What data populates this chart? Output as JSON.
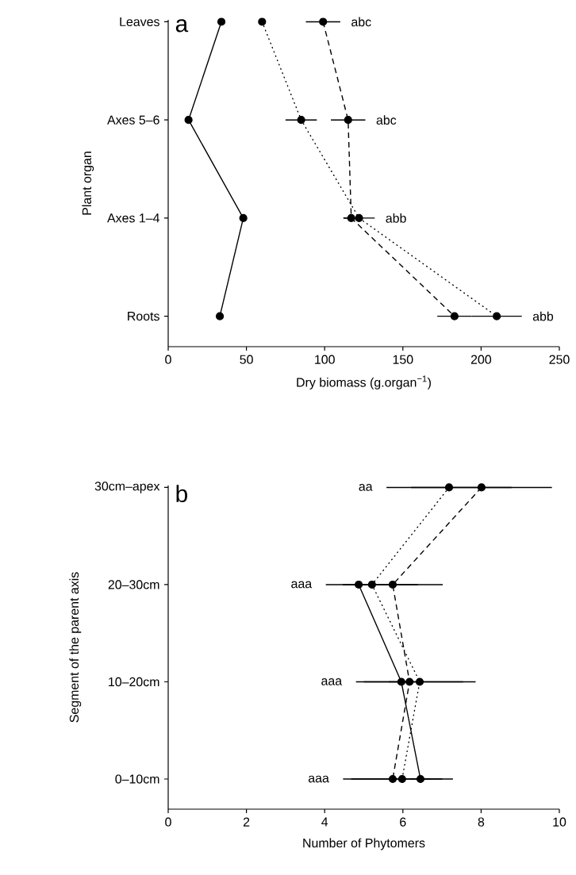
{
  "chart_data": [
    {
      "type": "line",
      "orientation": "horizontal",
      "ylabel": "Plant organ",
      "xlabel": "Dry biomass (g.organ$^{−1}$)",
      "categories": [
        "Leaves",
        "Axes 5–6",
        "Axes 1–4",
        "Roots"
      ],
      "xlim": [
        0,
        250
      ],
      "xticks": [
        0,
        50,
        100,
        150,
        200,
        250
      ],
      "marker": "circle",
      "series": [
        {
          "color": "#000000",
          "line_style": "solid",
          "values": [
            34,
            13,
            48,
            33
          ]
        },
        {
          "color": "#000000",
          "line_style": "dashed",
          "values": [
            99,
            115,
            117,
            183
          ],
          "errors": [
            11,
            11,
            5,
            11
          ]
        },
        {
          "color": "#000000",
          "line_style": "dotted",
          "values": [
            60,
            85,
            122,
            210
          ],
          "errors": [
            null,
            10,
            10,
            16
          ]
        }
      ],
      "annotations": [
        "a",
        "abc",
        "abc",
        "abb",
        "abb"
      ]
    },
    {
      "type": "line",
      "orientation": "horizontal",
      "ylabel": "Segment of the parent axis",
      "xlabel": "Number of Phytomers",
      "categories": [
        "30cm–apex",
        "20–30cm",
        "10–20cm",
        "0–10cm"
      ],
      "xlim": [
        0,
        10
      ],
      "xticks": [
        0,
        2,
        4,
        6,
        8,
        10
      ],
      "marker": "circle",
      "series": [
        {
          "color": "#000000",
          "line_style": "solid",
          "values": [
            null,
            4.87,
            5.96,
            6.45
          ],
          "errors": [
            null,
            0.4,
            0.32,
            0.26
          ]
        },
        {
          "color": "#000000",
          "line_style": "dashed",
          "values": [
            8.01,
            5.74,
            6.17,
            5.74
          ],
          "errors": [
            1.8,
            1.28,
            1.37,
            1.27
          ]
        },
        {
          "color": "#000000",
          "line_style": "dotted",
          "values": [
            7.18,
            5.21,
            6.43,
            5.98
          ],
          "errors": [
            1.6,
            1.18,
            1.43,
            1.3
          ]
        }
      ],
      "annotations": [
        "b",
        "aa",
        "aaa",
        "aaa",
        "aaa"
      ]
    }
  ]
}
